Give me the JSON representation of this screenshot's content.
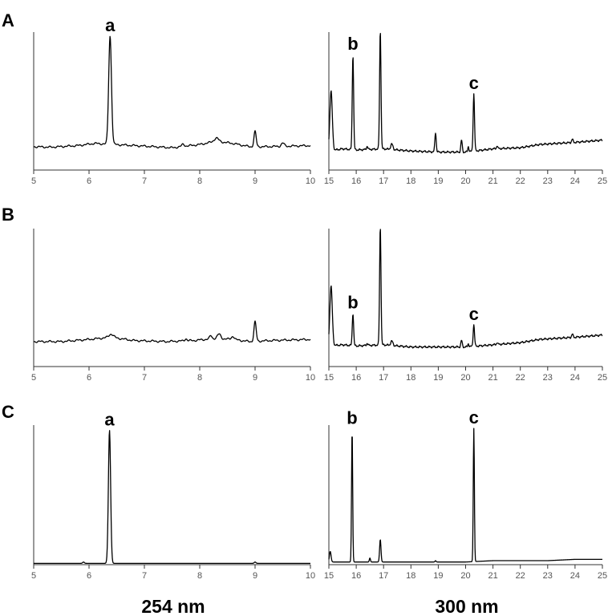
{
  "row_labels": [
    "A",
    "B",
    "C"
  ],
  "column_labels": [
    "254 nm",
    "300 nm"
  ],
  "chart_data": [
    {
      "type": "line",
      "row": "A",
      "panel": "254 nm",
      "xlim": [
        5,
        10
      ],
      "ylim": [
        0,
        100
      ],
      "x_ticks": [
        "5",
        "6",
        "7",
        "8",
        "9",
        "10"
      ],
      "baseline": [
        [
          5,
          9
        ],
        [
          5.3,
          8.5
        ],
        [
          5.8,
          10
        ],
        [
          6.1,
          12
        ],
        [
          7,
          9.5
        ],
        [
          7.5,
          8
        ],
        [
          8,
          11
        ],
        [
          8.3,
          14
        ],
        [
          8.6,
          12
        ],
        [
          8.9,
          9
        ],
        [
          9.2,
          9
        ],
        [
          10,
          10
        ]
      ],
      "peaks": [
        {
          "x": 6.38,
          "height": 100,
          "width": 0.05,
          "label": "a"
        },
        {
          "x": 9.0,
          "height": 14,
          "width": 0.04
        },
        {
          "x": 8.3,
          "height": 3,
          "width": 0.08
        },
        {
          "x": 7.7,
          "height": 2,
          "width": 0.05
        },
        {
          "x": 9.5,
          "height": 3,
          "width": 0.05
        }
      ]
    },
    {
      "type": "line",
      "row": "A",
      "panel": "300 nm",
      "xlim": [
        15,
        25
      ],
      "ylim": [
        0,
        100
      ],
      "x_ticks": [
        "15",
        "16",
        "17",
        "18",
        "19",
        "20",
        "21",
        "22",
        "23",
        "24",
        "25"
      ],
      "baseline": [
        [
          15,
          5
        ],
        [
          15.5,
          7
        ],
        [
          16,
          6
        ],
        [
          17,
          7
        ],
        [
          18,
          5
        ],
        [
          19,
          4
        ],
        [
          20,
          4
        ],
        [
          21,
          7
        ],
        [
          22,
          8
        ],
        [
          22.7,
          11
        ],
        [
          24,
          13
        ],
        [
          25,
          15
        ]
      ],
      "peaks": [
        {
          "x": 15.08,
          "height": 55,
          "width": 0.09
        },
        {
          "x": 15.88,
          "height": 88,
          "width": 0.05,
          "label": "b"
        },
        {
          "x": 16.88,
          "height": 110,
          "width": 0.05
        },
        {
          "x": 17.3,
          "height": 5,
          "width": 0.08
        },
        {
          "x": 16.4,
          "height": 3,
          "width": 0.05
        },
        {
          "x": 18.9,
          "height": 18,
          "width": 0.05
        },
        {
          "x": 19.85,
          "height": 11,
          "width": 0.05
        },
        {
          "x": 20.1,
          "height": 5,
          "width": 0.04
        },
        {
          "x": 20.3,
          "height": 53,
          "width": 0.05,
          "label": "c"
        },
        {
          "x": 21.15,
          "height": 3,
          "width": 0.04
        },
        {
          "x": 23.9,
          "height": 3,
          "width": 0.05
        }
      ]
    },
    {
      "type": "line",
      "row": "B",
      "panel": "254 nm",
      "xlim": [
        5,
        10
      ],
      "ylim": [
        0,
        100
      ],
      "x_ticks": [
        "5",
        "6",
        "7",
        "8",
        "9",
        "10"
      ],
      "baseline": [
        [
          5,
          9
        ],
        [
          5.5,
          9
        ],
        [
          6.0,
          11
        ],
        [
          6.4,
          13
        ],
        [
          6.8,
          10
        ],
        [
          7.4,
          9
        ],
        [
          7.9,
          10
        ],
        [
          8.3,
          12
        ],
        [
          8.6,
          11
        ],
        [
          8.9,
          9
        ],
        [
          9.3,
          10
        ],
        [
          10,
          11
        ]
      ],
      "peaks": [
        {
          "x": 6.4,
          "height": 3,
          "width": 0.08
        },
        {
          "x": 7.75,
          "height": 2,
          "width": 0.04
        },
        {
          "x": 8.2,
          "height": 3,
          "width": 0.04
        },
        {
          "x": 8.35,
          "height": 4,
          "width": 0.06
        },
        {
          "x": 8.6,
          "height": 3,
          "width": 0.05
        },
        {
          "x": 9.0,
          "height": 18,
          "width": 0.04
        }
      ]
    },
    {
      "type": "line",
      "row": "B",
      "panel": "300 nm",
      "xlim": [
        15,
        25
      ],
      "ylim": [
        0,
        100
      ],
      "x_ticks": [
        "15",
        "16",
        "17",
        "18",
        "19",
        "20",
        "21",
        "22",
        "23",
        "24",
        "25"
      ],
      "baseline": [
        [
          15,
          5
        ],
        [
          15.5,
          6
        ],
        [
          16,
          5
        ],
        [
          17,
          6
        ],
        [
          18,
          4
        ],
        [
          19,
          4
        ],
        [
          20,
          4
        ],
        [
          21,
          6
        ],
        [
          22,
          8
        ],
        [
          22.7,
          11
        ],
        [
          24,
          13
        ],
        [
          25,
          15
        ]
      ],
      "peaks": [
        {
          "x": 15.08,
          "height": 55,
          "width": 0.09
        },
        {
          "x": 15.88,
          "height": 30,
          "width": 0.05,
          "label": "b"
        },
        {
          "x": 16.88,
          "height": 110,
          "width": 0.05
        },
        {
          "x": 17.3,
          "height": 4,
          "width": 0.08
        },
        {
          "x": 16.4,
          "height": 2,
          "width": 0.05
        },
        {
          "x": 19.85,
          "height": 6,
          "width": 0.05
        },
        {
          "x": 20.1,
          "height": 3,
          "width": 0.04
        },
        {
          "x": 20.3,
          "height": 20,
          "width": 0.05,
          "label": "c"
        },
        {
          "x": 21.15,
          "height": 2,
          "width": 0.04
        },
        {
          "x": 23.9,
          "height": 3,
          "width": 0.05
        }
      ]
    },
    {
      "type": "line",
      "row": "C",
      "panel": "254 nm",
      "xlim": [
        5,
        10
      ],
      "ylim": [
        0,
        100
      ],
      "x_ticks": [
        "5",
        "6",
        "7",
        "8",
        "9",
        "10"
      ],
      "baseline": [
        [
          5,
          1
        ],
        [
          10,
          1
        ]
      ],
      "peaks": [
        {
          "x": 6.37,
          "height": 100,
          "width": 0.04,
          "label": "a"
        },
        {
          "x": 5.9,
          "height": 1,
          "width": 0.03
        },
        {
          "x": 9.0,
          "height": 1,
          "width": 0.03
        }
      ]
    },
    {
      "type": "line",
      "row": "C",
      "panel": "300 nm",
      "xlim": [
        15,
        25
      ],
      "ylim": [
        0,
        100
      ],
      "x_ticks": [
        "15",
        "16",
        "17",
        "18",
        "19",
        "20",
        "21",
        "22",
        "23",
        "24",
        "25"
      ],
      "baseline": [
        [
          15,
          2
        ],
        [
          20,
          2
        ],
        [
          21,
          3
        ],
        [
          22,
          3
        ],
        [
          23,
          3
        ],
        [
          24,
          4
        ],
        [
          25,
          4
        ]
      ],
      "peaks": [
        {
          "x": 15.05,
          "height": 8,
          "width": 0.06
        },
        {
          "x": 15.85,
          "height": 100,
          "width": 0.04,
          "label": "b"
        },
        {
          "x": 16.5,
          "height": 3,
          "width": 0.04
        },
        {
          "x": 16.88,
          "height": 17,
          "width": 0.05
        },
        {
          "x": 18.9,
          "height": 1,
          "width": 0.04
        },
        {
          "x": 20.3,
          "height": 100,
          "width": 0.04,
          "label": "c"
        }
      ]
    }
  ]
}
